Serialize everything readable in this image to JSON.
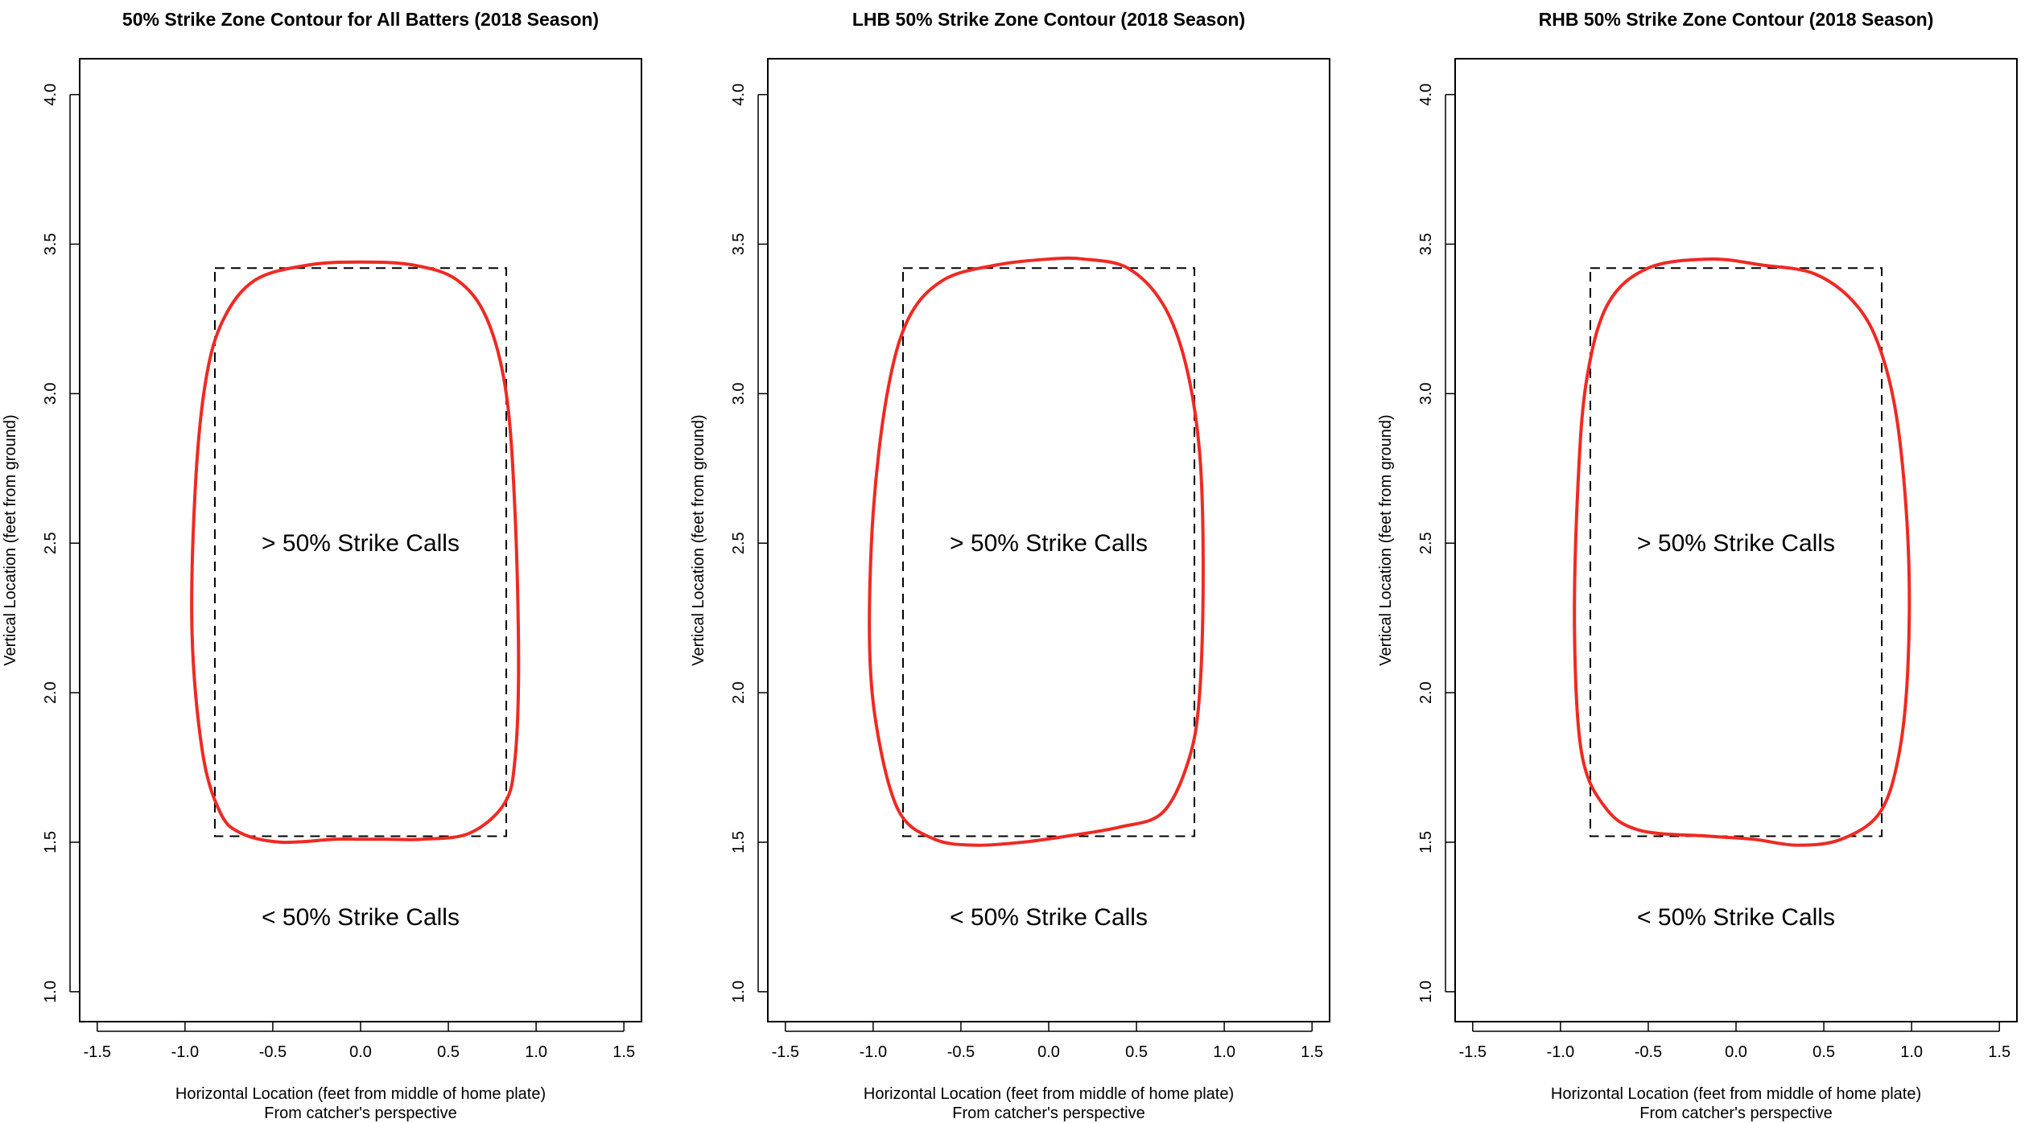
{
  "chart_data": [
    {
      "type": "contour",
      "title": "50% Strike Zone Contour for All Batters (2018 Season)",
      "xlabel": "Horizontal Location (feet from middle of home plate)",
      "xlabel2": "From catcher's perspective",
      "ylabel": "Vertical Location (feet from ground)",
      "xlim": [
        -1.6,
        1.6
      ],
      "ylim": [
        0.9,
        4.12
      ],
      "xticks": [
        -1.5,
        -1.0,
        -0.5,
        0.0,
        0.5,
        1.0,
        1.5
      ],
      "yticks": [
        1.0,
        1.5,
        2.0,
        2.5,
        3.0,
        3.5,
        4.0
      ],
      "inside_label": "> 50% Strike Calls",
      "inside_label_pos": [
        0.0,
        2.5
      ],
      "outside_label": "< 50% Strike Calls",
      "outside_label_pos": [
        0.0,
        1.25
      ],
      "rulebook_zone": {
        "x": [
          -0.83,
          0.83
        ],
        "y": [
          1.52,
          3.42
        ]
      },
      "contour_color": "#ee2a24",
      "contour": [
        [
          0.0,
          3.44
        ],
        [
          0.3,
          3.43
        ],
        [
          0.55,
          3.38
        ],
        [
          0.72,
          3.25
        ],
        [
          0.83,
          3.0
        ],
        [
          0.88,
          2.6
        ],
        [
          0.9,
          2.1
        ],
        [
          0.88,
          1.78
        ],
        [
          0.82,
          1.63
        ],
        [
          0.62,
          1.53
        ],
        [
          0.35,
          1.51
        ],
        [
          0.15,
          1.51
        ],
        [
          0.0,
          1.51
        ],
        [
          -0.15,
          1.51
        ],
        [
          -0.45,
          1.5
        ],
        [
          -0.68,
          1.53
        ],
        [
          -0.8,
          1.6
        ],
        [
          -0.9,
          1.8
        ],
        [
          -0.96,
          2.2
        ],
        [
          -0.94,
          2.7
        ],
        [
          -0.88,
          3.05
        ],
        [
          -0.78,
          3.25
        ],
        [
          -0.6,
          3.38
        ],
        [
          -0.3,
          3.43
        ]
      ]
    },
    {
      "type": "contour",
      "title": "LHB 50% Strike Zone Contour (2018 Season)",
      "xlabel": "Horizontal Location (feet from middle of home plate)",
      "xlabel2": "From catcher's perspective",
      "ylabel": "Vertical Location (feet from ground)",
      "xlim": [
        -1.6,
        1.6
      ],
      "ylim": [
        0.9,
        4.12
      ],
      "xticks": [
        -1.5,
        -1.0,
        -0.5,
        0.0,
        0.5,
        1.0,
        1.5
      ],
      "yticks": [
        1.0,
        1.5,
        2.0,
        2.5,
        3.0,
        3.5,
        4.0
      ],
      "inside_label": "> 50% Strike Calls",
      "inside_label_pos": [
        0.0,
        2.5
      ],
      "outside_label": "< 50% Strike Calls",
      "outside_label_pos": [
        0.0,
        1.25
      ],
      "rulebook_zone": {
        "x": [
          -0.83,
          0.83
        ],
        "y": [
          1.52,
          3.42
        ]
      },
      "contour_color": "#ee2a24",
      "contour": [
        [
          0.2,
          3.45
        ],
        [
          0.45,
          3.42
        ],
        [
          0.65,
          3.3
        ],
        [
          0.78,
          3.1
        ],
        [
          0.86,
          2.8
        ],
        [
          0.88,
          2.4
        ],
        [
          0.86,
          2.0
        ],
        [
          0.8,
          1.78
        ],
        [
          0.65,
          1.6
        ],
        [
          0.4,
          1.55
        ],
        [
          0.1,
          1.52
        ],
        [
          -0.15,
          1.5
        ],
        [
          -0.42,
          1.49
        ],
        [
          -0.65,
          1.51
        ],
        [
          -0.85,
          1.6
        ],
        [
          -0.97,
          1.85
        ],
        [
          -1.02,
          2.15
        ],
        [
          -1.0,
          2.6
        ],
        [
          -0.92,
          3.0
        ],
        [
          -0.8,
          3.25
        ],
        [
          -0.6,
          3.38
        ],
        [
          -0.3,
          3.43
        ],
        [
          0.0,
          3.45
        ]
      ]
    },
    {
      "type": "contour",
      "title": "RHB 50% Strike Zone Contour (2018 Season)",
      "xlabel": "Horizontal Location (feet from middle of home plate)",
      "xlabel2": "From catcher's perspective",
      "ylabel": "Vertical Location (feet from ground)",
      "xlim": [
        -1.6,
        1.6
      ],
      "ylim": [
        0.9,
        4.12
      ],
      "xticks": [
        -1.5,
        -1.0,
        -0.5,
        0.0,
        0.5,
        1.0,
        1.5
      ],
      "yticks": [
        1.0,
        1.5,
        2.0,
        2.5,
        3.0,
        3.5,
        4.0
      ],
      "inside_label": "> 50% Strike Calls",
      "inside_label_pos": [
        0.0,
        2.5
      ],
      "outside_label": "< 50% Strike Calls",
      "outside_label_pos": [
        0.0,
        1.25
      ],
      "rulebook_zone": {
        "x": [
          -0.83,
          0.83
        ],
        "y": [
          1.52,
          3.42
        ]
      },
      "contour_color": "#ee2a24",
      "contour": [
        [
          -0.15,
          3.45
        ],
        [
          0.15,
          3.43
        ],
        [
          0.45,
          3.4
        ],
        [
          0.68,
          3.3
        ],
        [
          0.82,
          3.15
        ],
        [
          0.92,
          2.9
        ],
        [
          0.98,
          2.5
        ],
        [
          0.98,
          2.1
        ],
        [
          0.93,
          1.8
        ],
        [
          0.82,
          1.6
        ],
        [
          0.6,
          1.51
        ],
        [
          0.35,
          1.49
        ],
        [
          0.1,
          1.51
        ],
        [
          -0.15,
          1.52
        ],
        [
          -0.55,
          1.54
        ],
        [
          -0.75,
          1.62
        ],
        [
          -0.88,
          1.8
        ],
        [
          -0.92,
          2.2
        ],
        [
          -0.9,
          2.7
        ],
        [
          -0.85,
          3.05
        ],
        [
          -0.73,
          3.3
        ],
        [
          -0.5,
          3.42
        ]
      ]
    }
  ]
}
